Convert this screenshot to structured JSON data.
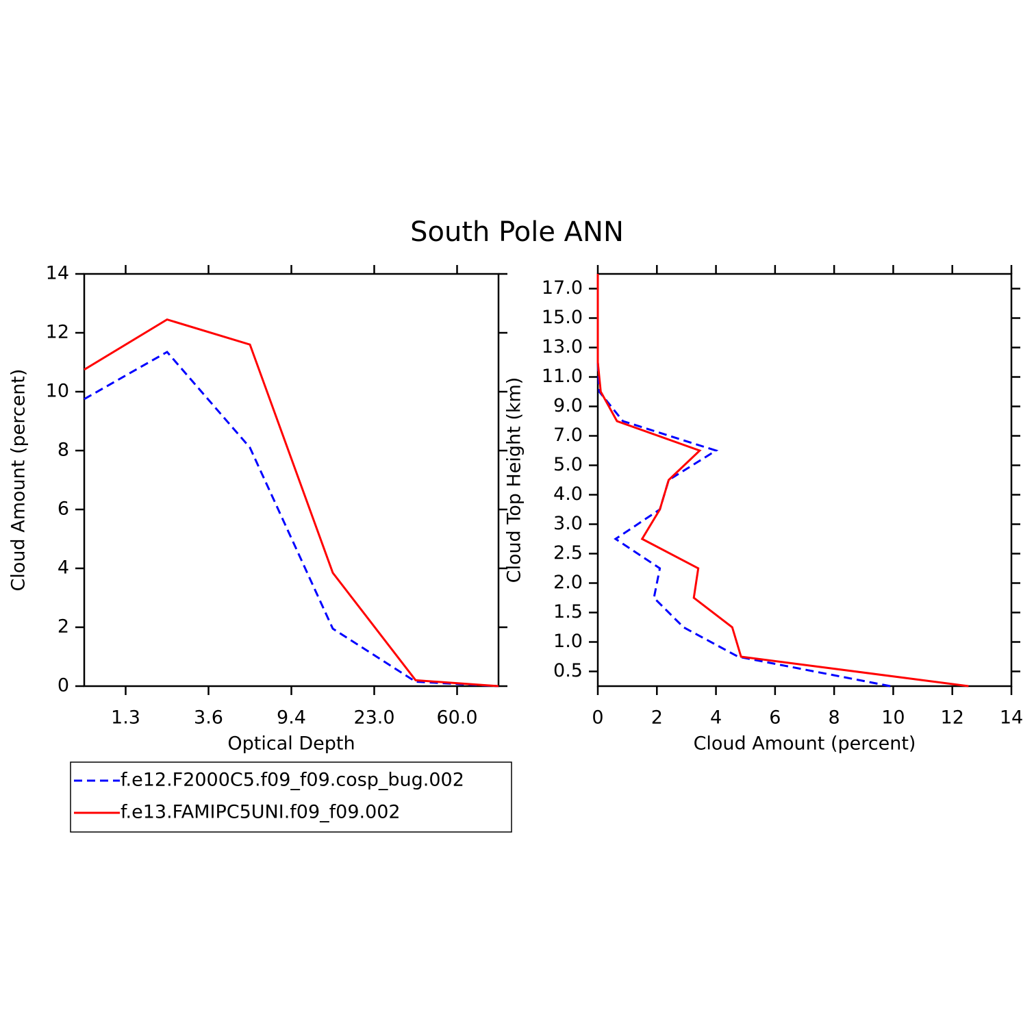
{
  "title": "South Pole ANN",
  "chart_data": [
    {
      "type": "line",
      "orientation": "vertical",
      "xlabel": "Optical Depth",
      "ylabel": "Cloud Amount (percent)",
      "x": [
        0,
        1,
        2,
        3,
        4,
        5
      ],
      "xlim": [
        0,
        5
      ],
      "xticks": [
        {
          "value": 0.5,
          "label": "1.3"
        },
        {
          "value": 1.5,
          "label": "3.6"
        },
        {
          "value": 2.5,
          "label": "9.4"
        },
        {
          "value": 3.5,
          "label": "23.0"
        },
        {
          "value": 4.5,
          "label": "60.0"
        }
      ],
      "ylim": [
        0,
        14
      ],
      "yticks": [
        0,
        2,
        4,
        6,
        8,
        10,
        12,
        14
      ],
      "series": [
        {
          "name": "f.e12.F2000C5.f09_f09.cosp_bug.002",
          "color": "#0000ff",
          "dash": true,
          "values": [
            9.75,
            11.35,
            8.1,
            1.95,
            0.15,
            0.0
          ]
        },
        {
          "name": "f.e13.FAMIPC5UNI.f09_f09.002",
          "color": "#ff0000",
          "dash": false,
          "values": [
            10.75,
            12.45,
            11.6,
            3.85,
            0.2,
            0.0
          ]
        }
      ]
    },
    {
      "type": "line",
      "orientation": "horizontal",
      "xlabel": "Cloud Amount (percent)",
      "ylabel": "Cloud Top Height (km)",
      "y": [
        0,
        1,
        2,
        3,
        4,
        5,
        6,
        7,
        8,
        9,
        10,
        11,
        12,
        13,
        14
      ],
      "ylim": [
        0,
        14
      ],
      "yticks": [
        {
          "value": 0.5,
          "label": "0.5"
        },
        {
          "value": 1.5,
          "label": "1.0"
        },
        {
          "value": 2.5,
          "label": "1.5"
        },
        {
          "value": 3.5,
          "label": "2.0"
        },
        {
          "value": 4.5,
          "label": "2.5"
        },
        {
          "value": 5.5,
          "label": "3.0"
        },
        {
          "value": 6.5,
          "label": "4.0"
        },
        {
          "value": 7.5,
          "label": "5.0"
        },
        {
          "value": 8.5,
          "label": "7.0"
        },
        {
          "value": 9.5,
          "label": "9.0"
        },
        {
          "value": 10.5,
          "label": "11.0"
        },
        {
          "value": 11.5,
          "label": "13.0"
        },
        {
          "value": 12.5,
          "label": "15.0"
        },
        {
          "value": 13.5,
          "label": "17.0"
        }
      ],
      "xlim": [
        0,
        14
      ],
      "xticks": [
        0,
        2,
        4,
        6,
        8,
        10,
        12,
        14
      ],
      "series": [
        {
          "color": "#0000ff",
          "dash": true,
          "values": [
            9.9,
            4.75,
            2.9,
            1.9,
            2.1,
            0.6,
            2.1,
            2.4,
            4.0,
            0.85,
            0.05,
            0,
            0,
            0,
            0
          ]
        },
        {
          "color": "#ff0000",
          "dash": false,
          "values": [
            12.55,
            4.85,
            4.55,
            3.25,
            3.4,
            1.5,
            2.1,
            2.4,
            3.45,
            0.65,
            0.1,
            0,
            0,
            0,
            0
          ]
        }
      ]
    }
  ]
}
